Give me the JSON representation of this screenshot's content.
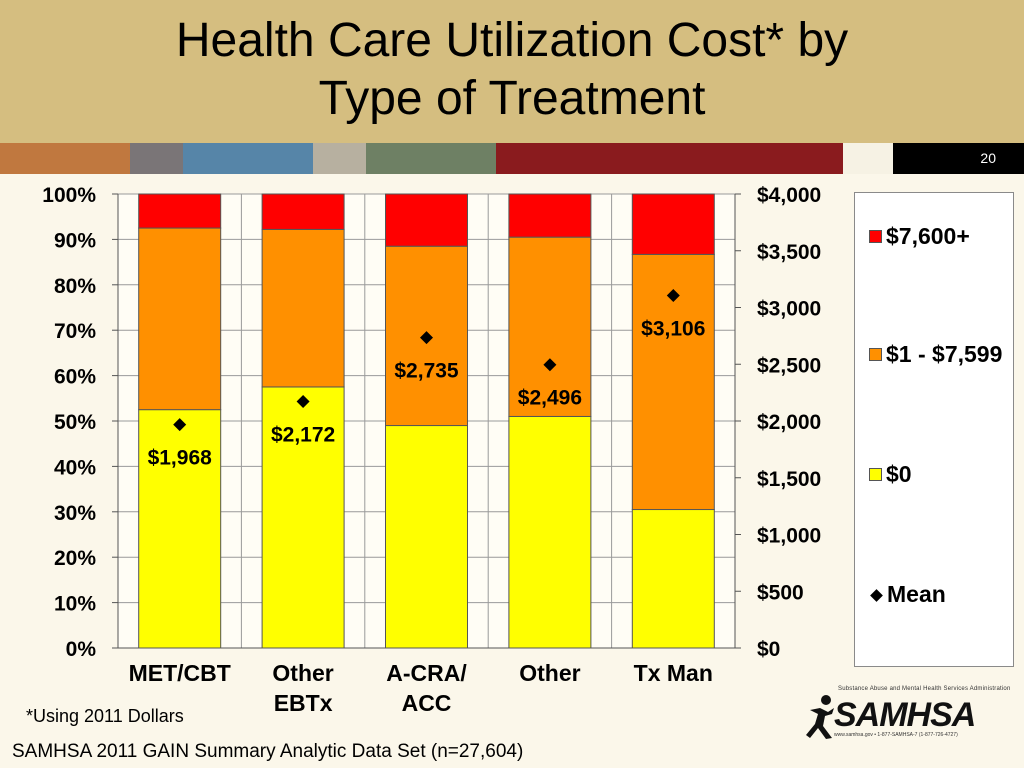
{
  "slide": {
    "title_line1": "Health Care Utilization Cost* by",
    "title_line2": "Type of Treatment",
    "slide_number": "20",
    "footnote": "*Using 2011 Dollars",
    "source": "SAMHSA 2011 GAIN Summary Analytic Data Set (n=27,604)",
    "logo_text": "SAMHSA",
    "logo_tagline": "Substance Abuse and Mental Health Services Administration",
    "logo_contact": "www.samhsa.gov • 1-877-SAMHSA-7 (1-877-726-4727)",
    "stripe_colors": [
      "#c0783f",
      "#7a7577",
      "#5685a8",
      "#b7b0a0",
      "#6e8064",
      "#8a1b1e"
    ]
  },
  "chart_data": {
    "type": "bar",
    "stacked": true,
    "categories": [
      [
        "MET/CBT"
      ],
      [
        "Other",
        "EBTx"
      ],
      [
        "A-CRA/",
        "ACC"
      ],
      [
        "Other"
      ],
      [
        "Tx Man"
      ]
    ],
    "series": [
      {
        "name": "$0",
        "color": "#ffff00",
        "values": [
          52.5,
          57.5,
          49.0,
          51.0,
          30.5
        ]
      },
      {
        "name": "$1 - $7,599",
        "color": "#ff9000",
        "values": [
          40.0,
          34.7,
          39.5,
          39.5,
          56.2
        ]
      },
      {
        "name": "$7,600+",
        "color": "#ff0000",
        "values": [
          7.5,
          7.8,
          11.5,
          9.5,
          13.3
        ]
      }
    ],
    "mean": {
      "name": "Mean",
      "values": [
        1968,
        2172,
        2735,
        2496,
        3106
      ],
      "labels": [
        "$1,968",
        "$2,172",
        "$2,735",
        "$2,496",
        "$3,106"
      ]
    },
    "y_left": {
      "ylim": [
        0,
        100
      ],
      "ticks": [
        "0%",
        "10%",
        "20%",
        "30%",
        "40%",
        "50%",
        "60%",
        "70%",
        "80%",
        "90%",
        "100%"
      ]
    },
    "y_right": {
      "ylim": [
        0,
        4000
      ],
      "ticks": [
        "$0",
        "$500",
        "$1,000",
        "$1,500",
        "$2,000",
        "$2,500",
        "$3,000",
        "$3,500",
        "$4,000"
      ]
    },
    "legend": {
      "position": "right",
      "entries": [
        {
          "label": "$7,600+",
          "color": "#ff0000"
        },
        {
          "label": "$1 - $7,599",
          "color": "#ff9000"
        },
        {
          "label": "$0",
          "color": "#ffff00"
        },
        {
          "label": "Mean",
          "marker": "diamond"
        }
      ]
    },
    "grid": true
  }
}
